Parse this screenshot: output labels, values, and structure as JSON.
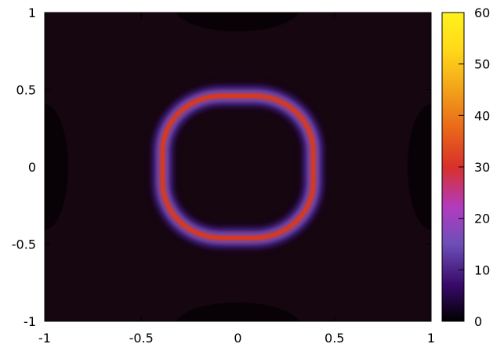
{
  "chart_data": {
    "type": "heatmap",
    "title": "",
    "xlabel": "",
    "ylabel": "",
    "xlim": [
      -1,
      1
    ],
    "ylim": [
      -1,
      1
    ],
    "x_ticks": [
      "-1",
      "-0.5",
      "0",
      "0.5",
      "1"
    ],
    "y_ticks": [
      "-1",
      "-0.5",
      "0",
      "0.5",
      "1"
    ],
    "x_tick_values": [
      -1,
      -0.5,
      0,
      0.5,
      1
    ],
    "y_tick_values": [
      -1,
      -0.5,
      0,
      0.5,
      1
    ],
    "colorbar": {
      "range": [
        0,
        60
      ],
      "ticks": [
        "0",
        "10",
        "20",
        "30",
        "40",
        "50",
        "60"
      ],
      "tick_values": [
        0,
        10,
        20,
        30,
        40,
        50,
        60
      ],
      "colormap": [
        "#000000",
        "#3a0a6b",
        "#6d4fb8",
        "#b23bbf",
        "#d8302b",
        "#e8661a",
        "#f2a21a",
        "#ffd919",
        "#fff21d"
      ]
    },
    "grid": false,
    "field": {
      "description_values": {
        "shape": "ring (rounded square)",
        "center": [
          0,
          0
        ],
        "half_width_x": 0.39,
        "half_height_y": 0.46,
        "peak_value": 32,
        "background_value": 0
      }
    }
  }
}
